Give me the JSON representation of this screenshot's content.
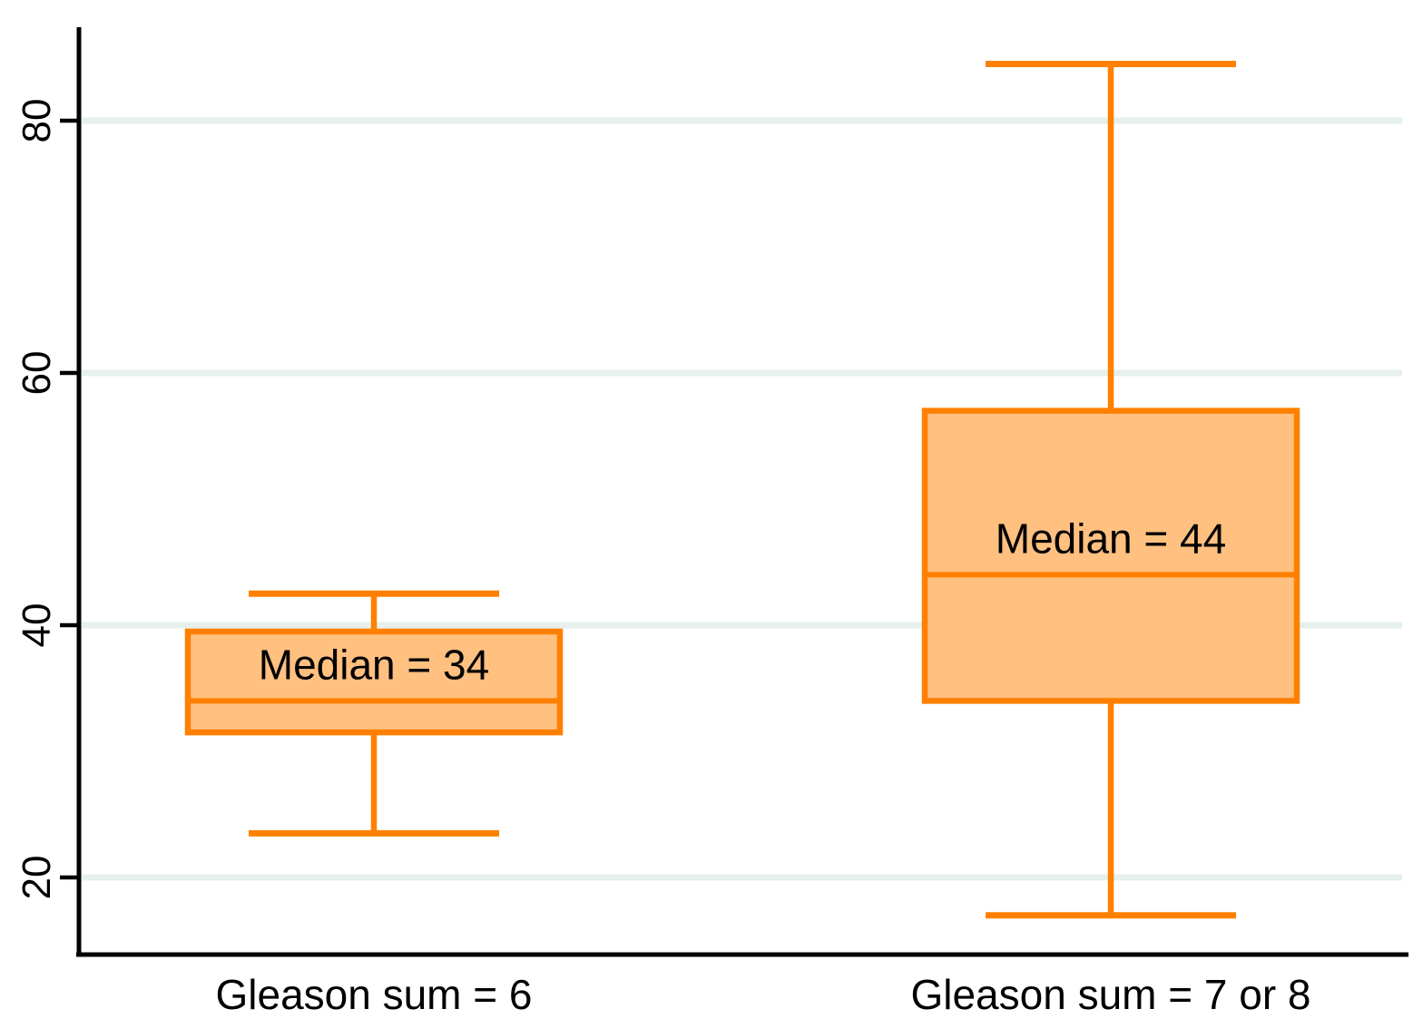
{
  "chart_data": {
    "type": "box",
    "title": "",
    "xlabel": "",
    "ylabel": "",
    "grid": true,
    "legend": false,
    "y_ticks": [
      20,
      40,
      60,
      80
    ],
    "y_axis_range": [
      14,
      87.5
    ],
    "colors": {
      "box_fill": "#FFC080",
      "box_stroke": "#FF8000",
      "gridline": "#E6F0ED",
      "axis": "#000000",
      "text": "#000000",
      "background": "#FFFFFF"
    },
    "series": [
      {
        "category": "Gleason sum = 6",
        "whisker_low": 23.5,
        "q1": 31.5,
        "median": 34,
        "q3": 39.5,
        "whisker_high": 42.5,
        "median_label": "Median = 34"
      },
      {
        "category": "Gleason sum = 7 or 8",
        "whisker_low": 17,
        "q1": 34,
        "median": 44,
        "q3": 57,
        "whisker_high": 84.5,
        "median_label": "Median = 44"
      }
    ]
  }
}
